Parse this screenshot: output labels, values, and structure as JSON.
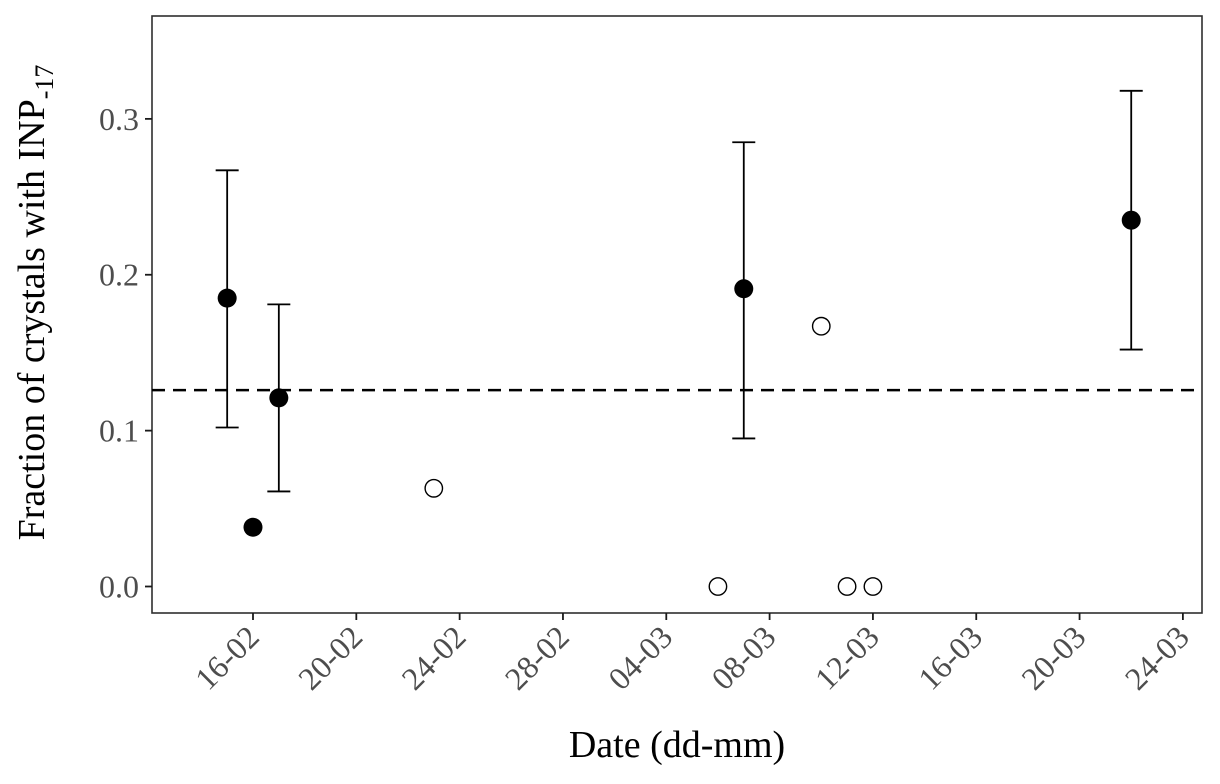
{
  "chart_data": {
    "type": "scatter",
    "title": "",
    "xlabel": "Date (dd-mm)",
    "ylabel_main": "Fraction of crystals with INP",
    "ylabel_sub": "-17",
    "x_axis_note": "day offsets measured relative to 16-02",
    "xlim_days": [
      -3.91,
      36.74
    ],
    "ylim": [
      -0.017,
      0.366
    ],
    "grid": "off",
    "legend": "none",
    "x_ticks": [
      {
        "day": 0,
        "label": "16-02"
      },
      {
        "day": 4,
        "label": "20-02"
      },
      {
        "day": 8,
        "label": "24-02"
      },
      {
        "day": 12,
        "label": "28-02"
      },
      {
        "day": 16,
        "label": "04-03"
      },
      {
        "day": 20,
        "label": "08-03"
      },
      {
        "day": 24,
        "label": "12-03"
      },
      {
        "day": 28,
        "label": "16-03"
      },
      {
        "day": 32,
        "label": "20-03"
      },
      {
        "day": 36,
        "label": "24-03"
      }
    ],
    "y_ticks": [
      {
        "value": 0.0,
        "label": "0.0"
      },
      {
        "value": 0.1,
        "label": "0.1"
      },
      {
        "value": 0.2,
        "label": "0.2"
      },
      {
        "value": 0.3,
        "label": "0.3"
      }
    ],
    "reference_line": {
      "y": 0.126,
      "style": "dashed",
      "color": "#000000"
    },
    "series": [
      {
        "name": "filled-circles-with-error-bars",
        "marker": "filled-circle",
        "points": [
          {
            "date": "15-02",
            "day": -1,
            "y": 0.185,
            "err_lo": 0.102,
            "err_hi": 0.267
          },
          {
            "date": "16-02",
            "day": 0,
            "y": 0.038
          },
          {
            "date": "17-02",
            "day": 1,
            "y": 0.121,
            "err_lo": 0.061,
            "err_hi": 0.181
          },
          {
            "date": "07-03",
            "day": 19,
            "y": 0.191,
            "err_lo": 0.095,
            "err_hi": 0.285
          },
          {
            "date": "22-03",
            "day": 34,
            "y": 0.235,
            "err_lo": 0.152,
            "err_hi": 0.318
          }
        ]
      },
      {
        "name": "open-circles",
        "marker": "open-circle",
        "points": [
          {
            "date": "23-02",
            "day": 7,
            "y": 0.063
          },
          {
            "date": "06-03",
            "day": 18,
            "y": 0.0
          },
          {
            "date": "10-03",
            "day": 22,
            "y": 0.167
          },
          {
            "date": "11-03",
            "day": 23,
            "y": 0.0
          },
          {
            "date": "12-03",
            "day": 24,
            "y": 0.0
          }
        ]
      }
    ],
    "colors": {
      "background": "#ffffff",
      "panel_border": "#2e2e2e",
      "tick_mark": "#1a1a1a",
      "tick_label": "#4d4d4d",
      "axis_title": "#000000",
      "point": "#000000",
      "error_bar": "#000000",
      "reference_line": "#000000"
    }
  }
}
